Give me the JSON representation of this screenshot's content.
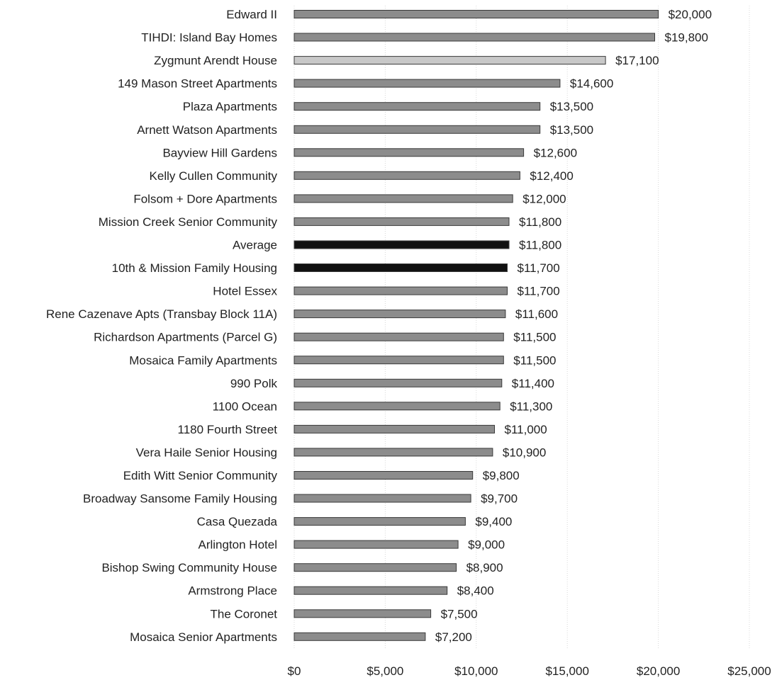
{
  "chart_data": {
    "type": "bar",
    "orientation": "horizontal",
    "title": "",
    "xlabel": "",
    "ylabel": "",
    "xlim": [
      0,
      25000
    ],
    "x_ticks": [
      0,
      5000,
      10000,
      15000,
      20000,
      25000
    ],
    "x_tick_labels": [
      "$0",
      "$5,000",
      "$10,000",
      "$15,000",
      "$20,000",
      "$25,000"
    ],
    "grid": true,
    "legend": "none",
    "categories": [
      "Edward II",
      "TIHDI: Island Bay Homes",
      "Zygmunt Arendt House",
      "149 Mason Street Apartments",
      "Plaza Apartments",
      "Arnett Watson Apartments",
      "Bayview Hill Gardens",
      "Kelly Cullen Community",
      "Folsom + Dore Apartments",
      "Mission Creek Senior Community",
      "Average",
      "10th & Mission Family Housing",
      "Hotel Essex",
      "Rene Cazenave Apts (Transbay Block 11A)",
      "Richardson Apartments (Parcel G)",
      "Mosaica Family Apartments",
      "990 Polk",
      "1100 Ocean",
      "1180 Fourth Street",
      "Vera Haile Senior Housing",
      "Edith Witt Senior Community",
      "Broadway Sansome Family Housing",
      "Casa Quezada",
      "Arlington Hotel",
      "Bishop Swing Community House",
      "Armstrong Place",
      "The Coronet",
      "Mosaica Senior Apartments"
    ],
    "values": [
      20000,
      19800,
      17100,
      14600,
      13500,
      13500,
      12600,
      12400,
      12000,
      11800,
      11800,
      11700,
      11700,
      11600,
      11500,
      11500,
      11400,
      11300,
      11000,
      10900,
      9800,
      9700,
      9400,
      9000,
      8900,
      8400,
      7500,
      7200
    ],
    "value_labels": [
      "$20,000",
      "$19,800",
      "$17,100",
      "$14,600",
      "$13,500",
      "$13,500",
      "$12,600",
      "$12,400",
      "$12,000",
      "$11,800",
      "$11,800",
      "$11,700",
      "$11,700",
      "$11,600",
      "$11,500",
      "$11,500",
      "$11,400",
      "$11,300",
      "$11,000",
      "$10,900",
      "$9,800",
      "$9,700",
      "$9,400",
      "$9,000",
      "$8,900",
      "$8,400",
      "$7,500",
      "$7,200"
    ],
    "bar_colors": {
      "default": "#8c8c8c",
      "highlight_light": "#c8c8c8",
      "highlight_dark": "#111111"
    },
    "bar_color_keys": [
      "default",
      "default",
      "highlight_light",
      "default",
      "default",
      "default",
      "default",
      "default",
      "default",
      "default",
      "highlight_dark",
      "highlight_dark",
      "default",
      "default",
      "default",
      "default",
      "default",
      "default",
      "default",
      "default",
      "default",
      "default",
      "default",
      "default",
      "default",
      "default",
      "default",
      "default"
    ]
  }
}
